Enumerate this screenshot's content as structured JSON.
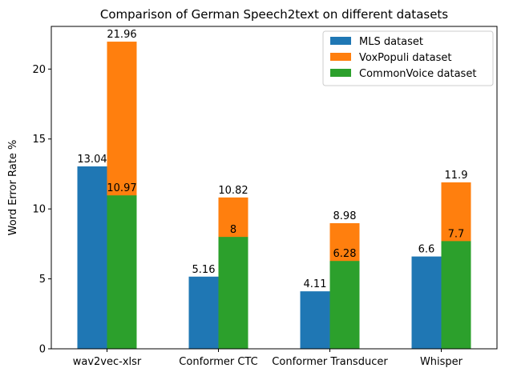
{
  "chart_data": {
    "type": "bar",
    "title": "Comparison of German Speech2text on different datasets",
    "xlabel": "",
    "ylabel": "Word Error Rate %",
    "ylim": [
      0,
      23.05
    ],
    "yticks": [
      0,
      5,
      10,
      15,
      20
    ],
    "grid": false,
    "legend_position": "top-right",
    "categories": [
      "wav2vec-xlsr",
      "Conformer CTC",
      "Conformer Transducer",
      "Whisper"
    ],
    "series": [
      {
        "name": "MLS dataset",
        "color": "#1f77b4",
        "values": [
          13.04,
          5.16,
          4.11,
          6.6
        ],
        "labels": [
          "13.04",
          "5.16",
          "4.11",
          "6.6"
        ]
      },
      {
        "name": "VoxPopuli dataset",
        "color": "#ff7f0e",
        "values": [
          21.96,
          10.82,
          8.98,
          11.9
        ],
        "labels": [
          "21.96",
          "10.82",
          "8.98",
          "11.9"
        ]
      },
      {
        "name": "CommonVoice dataset",
        "color": "#2ca02c",
        "values": [
          10.97,
          8,
          6.28,
          7.7
        ],
        "labels": [
          "10.97",
          "8",
          "6.28",
          "7.7"
        ]
      }
    ]
  }
}
